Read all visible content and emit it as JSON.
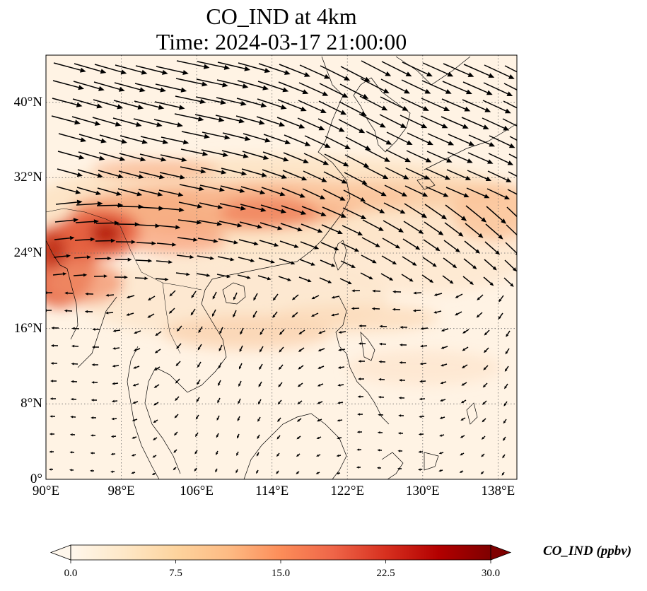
{
  "title_line1": "CO_IND at 4km",
  "title_line2": "Time: 2024-03-17 21:00:00",
  "map": {
    "lon_range": [
      90,
      140
    ],
    "lat_range": [
      0,
      45
    ],
    "lon_ticks": [
      90,
      98,
      106,
      114,
      122,
      130,
      138
    ],
    "lat_ticks": [
      0,
      8,
      16,
      24,
      32,
      40
    ],
    "lon_tick_labels": [
      "90°E",
      "98°E",
      "106°E",
      "114°E",
      "122°E",
      "130°E",
      "138°E"
    ],
    "lat_tick_labels": [
      "0°",
      "8°N",
      "16°N",
      "24°N",
      "32°N",
      "40°N"
    ],
    "field_variable": "CO_IND",
    "vector_field": "wind",
    "colormap": "OrRd"
  },
  "colorbar": {
    "label": "CO_IND (ppbv)",
    "range": [
      0,
      30
    ],
    "ticks": [
      0.0,
      7.5,
      15.0,
      22.5,
      30.0
    ],
    "tick_labels": [
      "0.0",
      "7.5",
      "15.0",
      "22.5",
      "30.0"
    ],
    "extend": "both",
    "colors": [
      "#fff7ec",
      "#fee8c8",
      "#fdd49e",
      "#fdbb84",
      "#fc8d59",
      "#ef6548",
      "#d7301f",
      "#b30000",
      "#7f0000"
    ]
  }
}
